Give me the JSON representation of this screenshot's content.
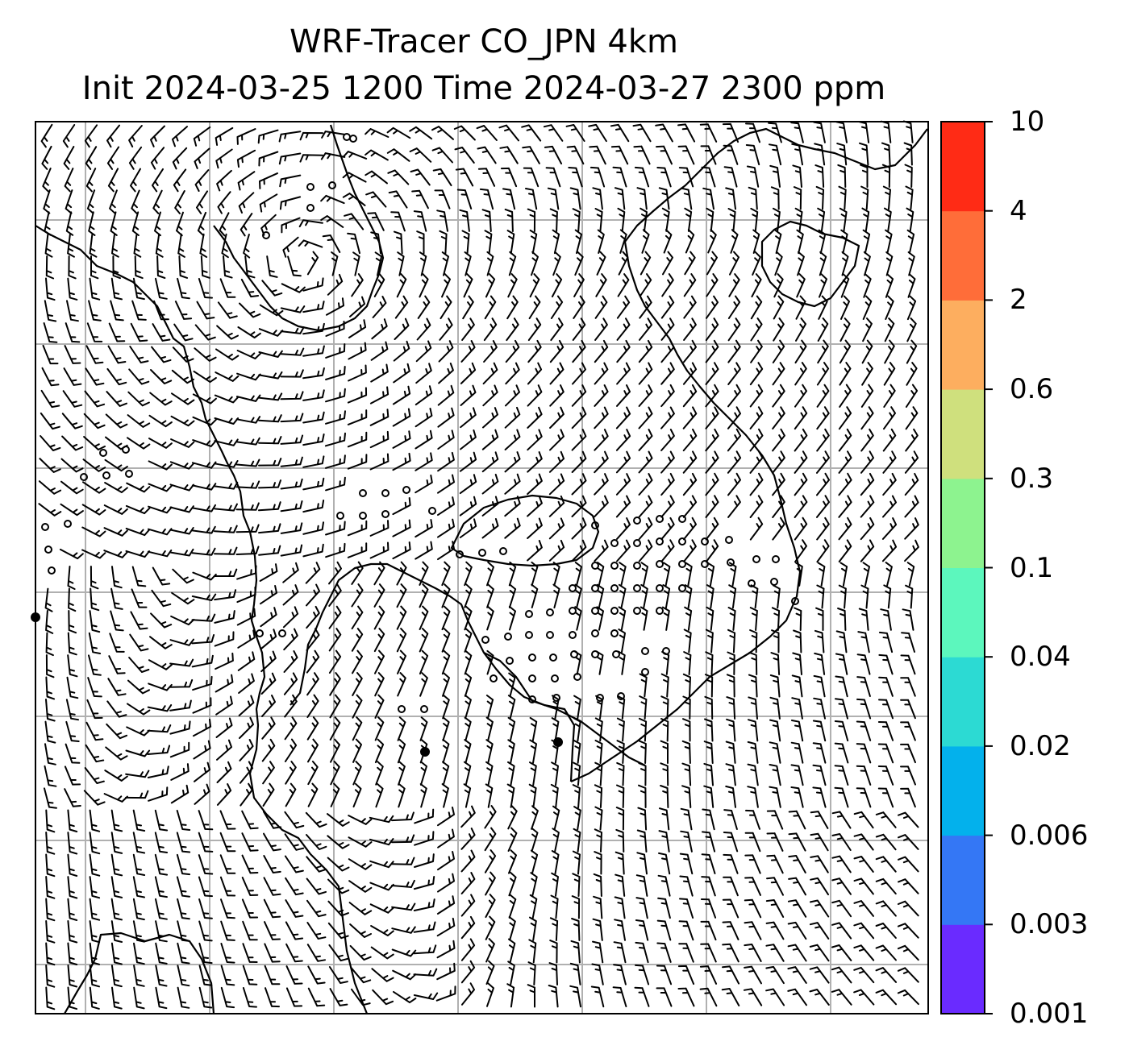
{
  "title": {
    "line1": "WRF-Tracer CO_JPN 4km",
    "line2": "Init 2024-03-25 1200 Time 2024-03-27 2300 ppm"
  },
  "colorbar": {
    "levels": [
      "0.001",
      "0.003",
      "0.006",
      "0.02",
      "0.04",
      "0.1",
      "0.3",
      "0.6",
      "2",
      "4",
      "10"
    ],
    "colors": [
      "#6a2bff",
      "#3477f5",
      "#03b1ec",
      "#2cdad3",
      "#5cf7bd",
      "#8df38f",
      "#cfe07d",
      "#fdae5f",
      "#ff6d39",
      "#ff2b15"
    ]
  },
  "map": {
    "gridlines": true,
    "gridline_color": "#b0b0b0",
    "wind_barbs": true,
    "coastline_color": "#000000"
  }
}
